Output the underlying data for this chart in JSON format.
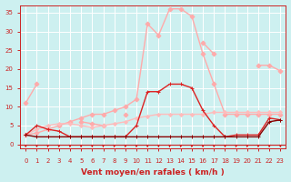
{
  "xlabel": "Vent moyen/en rafales ( km/h )",
  "background_color": "#cdf0f0",
  "grid_color": "#ffffff",
  "xlim": [
    -0.5,
    23.5
  ],
  "ylim": [
    -1,
    37
  ],
  "yticks": [
    0,
    5,
    10,
    15,
    20,
    25,
    30,
    35
  ],
  "xticks": [
    0,
    1,
    2,
    3,
    4,
    5,
    6,
    7,
    8,
    9,
    10,
    11,
    12,
    13,
    14,
    15,
    16,
    17,
    18,
    19,
    20,
    21,
    22,
    23
  ],
  "series": [
    {
      "x": [
        0,
        1,
        2,
        3,
        4,
        5,
        6,
        7,
        8,
        9,
        10,
        11,
        12,
        13,
        14,
        15,
        16,
        17,
        18,
        19,
        20,
        21,
        22,
        23
      ],
      "y": [
        11,
        16,
        null,
        null,
        null,
        6,
        5.5,
        5,
        null,
        8,
        null,
        null,
        null,
        null,
        null,
        null,
        27,
        24,
        null,
        null,
        null,
        21,
        21,
        19.5
      ],
      "color": "#ffaaaa",
      "linewidth": 1.0,
      "marker": "D",
      "markersize": 2.5,
      "zorder": 2
    },
    {
      "x": [
        0,
        1,
        2,
        3,
        4,
        5,
        6,
        7,
        8,
        9,
        10,
        11,
        12,
        13,
        14,
        15,
        16,
        17,
        18,
        19,
        20,
        21,
        22,
        23
      ],
      "y": [
        2.5,
        3,
        4,
        5,
        6,
        7,
        8,
        8,
        9,
        10,
        12,
        32,
        29,
        36,
        36,
        34,
        24,
        16,
        8,
        8,
        8,
        8,
        8,
        8
      ],
      "color": "#ffaaaa",
      "linewidth": 1.0,
      "marker": "D",
      "markersize": 2.5,
      "zorder": 2
    },
    {
      "x": [
        0,
        1,
        2,
        3,
        4,
        5,
        6,
        7,
        8,
        9,
        10,
        11,
        12,
        13,
        14,
        15,
        16,
        17,
        18,
        19,
        20,
        21,
        22,
        23
      ],
      "y": [
        2.5,
        4,
        5,
        5.5,
        5.5,
        5,
        4.5,
        5,
        5.5,
        6,
        7,
        7.5,
        8,
        8,
        8,
        8,
        8,
        8.5,
        8.5,
        8.5,
        8.5,
        8.5,
        8.5,
        8.5
      ],
      "color": "#ffbbbb",
      "linewidth": 1.0,
      "marker": "D",
      "markersize": 2.0,
      "zorder": 2
    },
    {
      "x": [
        0,
        1,
        2,
        3,
        4,
        5,
        6,
        7,
        8,
        9,
        10,
        11,
        12,
        13,
        14,
        15,
        16,
        17,
        18,
        19,
        20,
        21,
        22,
        23
      ],
      "y": [
        2.5,
        5,
        4,
        3.5,
        2,
        2,
        2,
        2,
        2,
        2,
        5,
        14,
        14,
        16,
        16,
        15,
        9,
        5,
        2,
        2.5,
        2.5,
        2.5,
        7,
        6.5
      ],
      "color": "#dd2222",
      "linewidth": 1.0,
      "marker": "+",
      "markersize": 3.5,
      "zorder": 3
    },
    {
      "x": [
        0,
        1,
        2,
        3,
        4,
        5,
        6,
        7,
        8,
        9,
        10,
        11,
        12,
        13,
        14,
        15,
        16,
        17,
        18,
        19,
        20,
        21,
        22,
        23
      ],
      "y": [
        2.5,
        2,
        2,
        2,
        2,
        2,
        2,
        2,
        2,
        2,
        2,
        2,
        2,
        2,
        2,
        2,
        2,
        2,
        2,
        2,
        2,
        2,
        6,
        6.5
      ],
      "color": "#880000",
      "linewidth": 1.0,
      "marker": "+",
      "markersize": 3.5,
      "zorder": 3
    }
  ],
  "arrow_color": "#cc2222",
  "tick_color": "#cc2222",
  "xlabel_color": "#cc2222",
  "spine_color": "#cc2222",
  "tick_fontsize": 5.0,
  "xlabel_fontsize": 6.5
}
